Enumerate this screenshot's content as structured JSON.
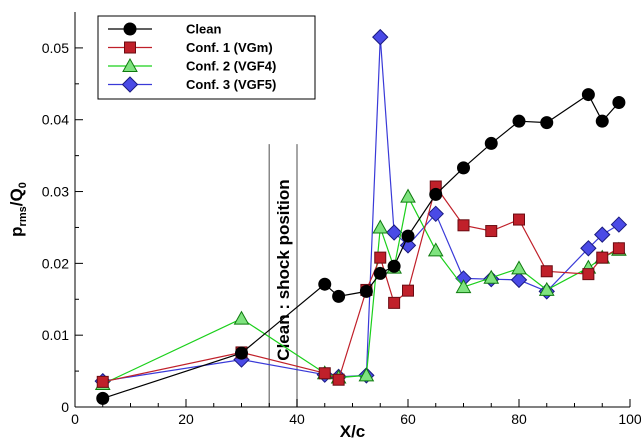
{
  "chart_data": {
    "type": "line",
    "xlabel": "X/c",
    "ylabel": {
      "main": "p",
      "sub1": "rms",
      "mid": "/Q",
      "sub2": "0"
    },
    "xlim": [
      0,
      100
    ],
    "ylim": [
      0,
      0.055
    ],
    "xticks": [
      0,
      20,
      40,
      60,
      80,
      100
    ],
    "yticks": [
      0,
      0.01,
      0.02,
      0.03,
      0.04,
      0.05
    ],
    "xtick_labels": [
      "0",
      "20",
      "40",
      "60",
      "80",
      "100"
    ],
    "ytick_labels": [
      "0",
      "0.01",
      "0.02",
      "0.03",
      "0.04",
      "0.05"
    ],
    "grid": false,
    "legend_position": "top-left",
    "annotation": {
      "text": "Clean : shock position",
      "band": [
        35,
        40
      ]
    },
    "series": [
      {
        "name": "Clean",
        "color": "#000000",
        "fill": "#000000",
        "marker": "circle",
        "x": [
          5,
          30,
          45,
          47.5,
          52.5,
          55,
          57.5,
          60,
          65,
          70,
          75,
          80,
          85,
          92.5,
          95,
          98
        ],
        "y": [
          0.0012,
          0.0075,
          0.0171,
          0.0154,
          0.0161,
          0.0186,
          0.0196,
          0.0238,
          0.0296,
          0.0333,
          0.0367,
          0.0398,
          0.0396,
          0.0435,
          0.0398,
          0.0424
        ]
      },
      {
        "name": "Conf. 1 (VGm)",
        "color": "#c0202a",
        "fill": "#c0202a",
        "marker": "square",
        "x": [
          5,
          30,
          45,
          47.5,
          52.5,
          55,
          57.5,
          60,
          65,
          70,
          75,
          80,
          85,
          92.5,
          95,
          98
        ],
        "y": [
          0.0035,
          0.0076,
          0.0047,
          0.0038,
          0.0163,
          0.0208,
          0.0145,
          0.0162,
          0.0307,
          0.0253,
          0.0245,
          0.0261,
          0.0189,
          0.0185,
          0.0208,
          0.0221
        ]
      },
      {
        "name": "Conf. 2 (VGF4)",
        "color": "#1bd01b",
        "fill": "#7fe37f",
        "marker": "triangle",
        "x": [
          5,
          30,
          45,
          47.5,
          52.5,
          55,
          57.5,
          60,
          65,
          70,
          75,
          80,
          85,
          92.5,
          95,
          98
        ],
        "y": [
          0.0032,
          0.0123,
          0.0047,
          0.0041,
          0.0044,
          0.025,
          0.0194,
          0.0293,
          0.0218,
          0.0167,
          0.018,
          0.0193,
          0.0163,
          0.0194,
          0.0208,
          0.0219
        ]
      },
      {
        "name": "Conf. 3 (VGF5)",
        "color": "#3a3ad8",
        "fill": "#4a4ae6",
        "marker": "diamond",
        "x": [
          5,
          30,
          45,
          47.5,
          52.5,
          55,
          57.5,
          60,
          65,
          70,
          75,
          80,
          85,
          92.5,
          95,
          98
        ],
        "y": [
          0.0036,
          0.0066,
          0.0045,
          0.0042,
          0.0044,
          0.0515,
          0.0243,
          0.0225,
          0.0269,
          0.0179,
          0.0178,
          0.0177,
          0.0161,
          0.0221,
          0.024,
          0.0254
        ]
      }
    ]
  }
}
